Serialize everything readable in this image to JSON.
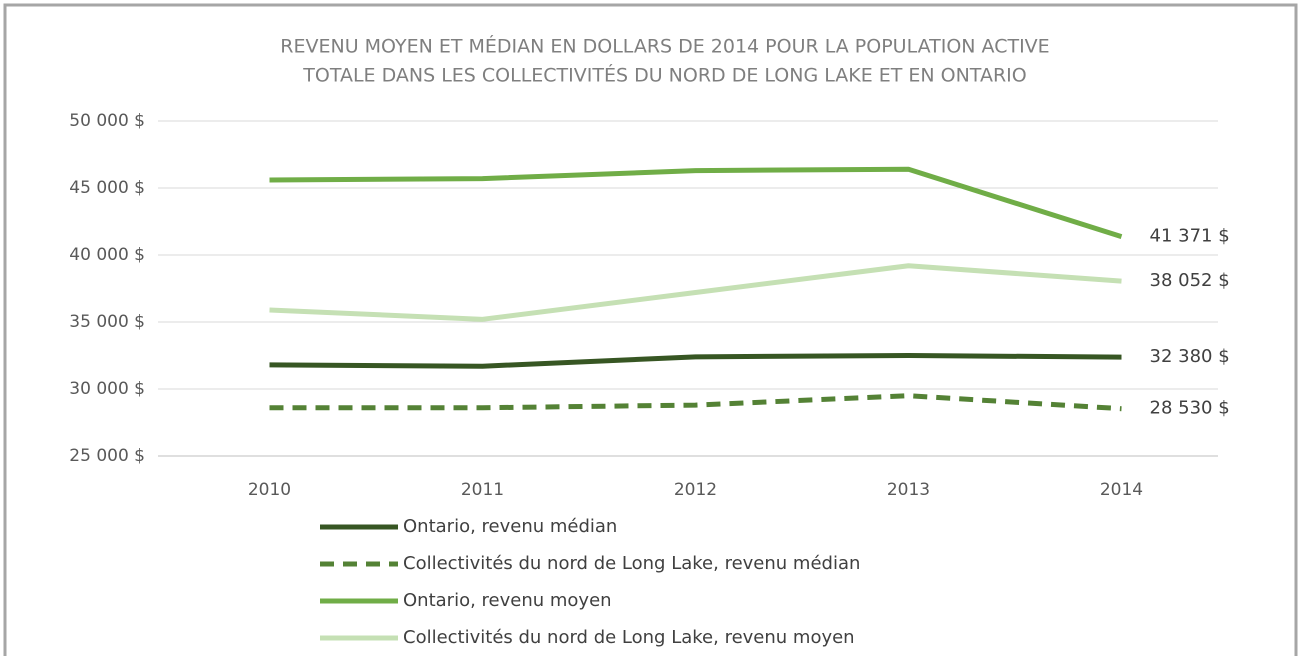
{
  "chart_data": {
    "type": "line",
    "title": [
      "REVENU MOYEN ET MÉDIAN EN DOLLARS DE 2014 POUR LA POPULATION ACTIVE",
      "TOTALE DANS LES COLLECTIVITÉS DU NORD DE LONG LAKE ET EN ONTARIO"
    ],
    "categories": [
      "2010",
      "2011",
      "2012",
      "2013",
      "2014"
    ],
    "series": [
      {
        "name": "Ontario, revenu médian",
        "color": "#375623",
        "dashed": false,
        "values": [
          31800,
          31700,
          32400,
          32500,
          32380
        ],
        "value_labels": [
          null,
          null,
          null,
          null,
          "32 380 $"
        ]
      },
      {
        "name": "Collectivités du nord de Long Lake, revenu médian",
        "color": "#548235",
        "dashed": true,
        "values": [
          28600,
          28600,
          28800,
          29500,
          28530
        ],
        "value_labels": [
          null,
          null,
          null,
          null,
          "28 530 $"
        ]
      },
      {
        "name": "Ontario, revenu moyen",
        "color": "#70ad47",
        "dashed": false,
        "values": [
          45600,
          45700,
          46300,
          46400,
          41371
        ],
        "value_labels": [
          null,
          null,
          null,
          null,
          "41 371 $"
        ]
      },
      {
        "name": "Collectivités du nord de Long Lake, revenu moyen",
        "color": "#c5e0b4",
        "dashed": false,
        "values": [
          35900,
          35200,
          37200,
          39200,
          38052
        ],
        "value_labels": [
          null,
          null,
          null,
          null,
          "38 052 $"
        ]
      }
    ],
    "ylim": [
      25000,
      50000
    ],
    "yticks": [
      {
        "value": 25000,
        "label": "25 000 $"
      },
      {
        "value": 30000,
        "label": "30 000 $"
      },
      {
        "value": 35000,
        "label": "35 000 $"
      },
      {
        "value": 40000,
        "label": "40 000 $"
      },
      {
        "value": 45000,
        "label": "45 000 $"
      },
      {
        "value": 50000,
        "label": "50 000 $"
      }
    ],
    "grid": true,
    "legend": "bottom"
  }
}
